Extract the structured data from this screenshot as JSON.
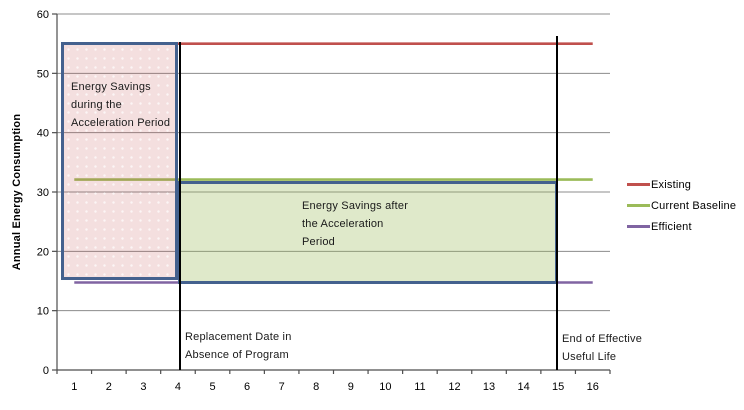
{
  "chart_data": {
    "type": "line",
    "title": "",
    "ylabel": "Annual Energy Consumption",
    "xlabel": "",
    "categories": [
      "1",
      "2",
      "3",
      "4",
      "5",
      "6",
      "7",
      "8",
      "9",
      "10",
      "11",
      "12",
      "13",
      "14",
      "15",
      "16"
    ],
    "ylim": [
      0,
      60
    ],
    "yticks": [
      0,
      10,
      20,
      30,
      40,
      50,
      60
    ],
    "grid": "horizontal",
    "legend_position": "right",
    "series": [
      {
        "name": "Existing",
        "color": "#C0504D",
        "value": 55,
        "x_start": 4,
        "x_end": 16
      },
      {
        "name": "Current Baseline",
        "color": "#9BBB59",
        "value": 32,
        "x_start": 1,
        "x_end": 16
      },
      {
        "name": "Efficient",
        "color": "#8064A2",
        "value": 15,
        "x_start": 1,
        "x_end": 16
      }
    ],
    "regions": [
      {
        "id": "acceleration",
        "label": "Energy Savings\nduring the\nAcceleration Period",
        "x_start": 1,
        "x_end": 4,
        "y_bottom": 15,
        "y_top": 55,
        "fill": "#C0504D",
        "fill_opacity": 0.18,
        "border_color": "#44618E",
        "textured": true
      },
      {
        "id": "post-acceleration",
        "label": "Energy Savings after\nthe Acceleration\nPeriod",
        "x_start": 4,
        "x_end": 15,
        "y_bottom": 15,
        "y_top": 32,
        "fill": "#9BBB59",
        "fill_opacity": 0.32,
        "border_color": "#44618E",
        "textured": false
      }
    ],
    "vlines": [
      {
        "x": 4,
        "y_top": 55,
        "color": "#000000",
        "label": "Replacement Date in\nAbsence of Program"
      },
      {
        "x": 15,
        "y_top": 56,
        "color": "#000000",
        "label": "End of Effective\nUseful Life"
      }
    ],
    "colors": {
      "gridline": "#8C8C8C",
      "axis": "#4D4D4D",
      "region_border": "#44618E"
    }
  }
}
